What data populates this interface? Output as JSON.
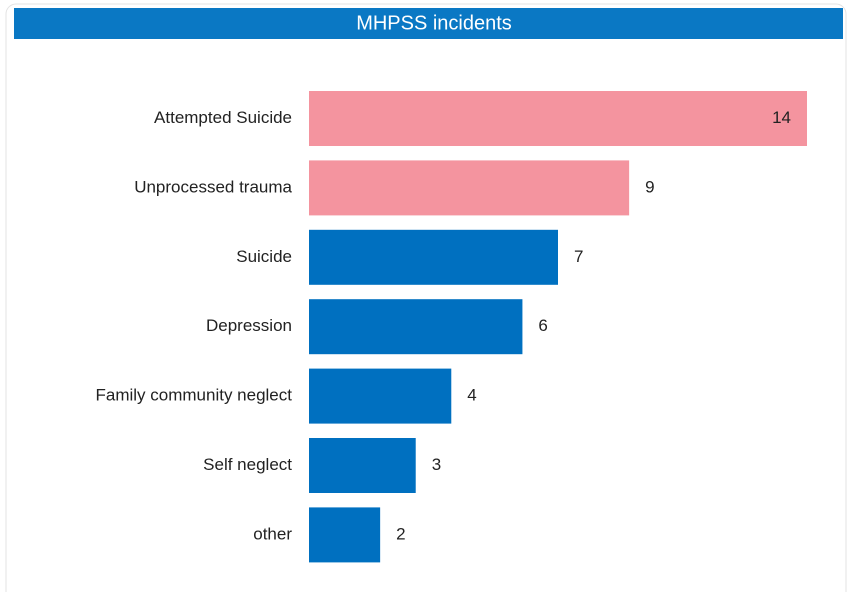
{
  "chart_data": {
    "type": "hbar",
    "title": "MHPSS incidents",
    "categories": [
      "Attempted Suicide",
      "Unprocessed trauma",
      "Suicide",
      "Depression",
      "Family community neglect",
      "Self neglect",
      "other"
    ],
    "values": [
      14,
      9,
      7,
      6,
      4,
      3,
      2
    ],
    "colors": [
      "#f4949f",
      "#f4949f",
      "#0070c0",
      "#0070c0",
      "#0070c0",
      "#0070c0",
      "#0070c0"
    ]
  }
}
